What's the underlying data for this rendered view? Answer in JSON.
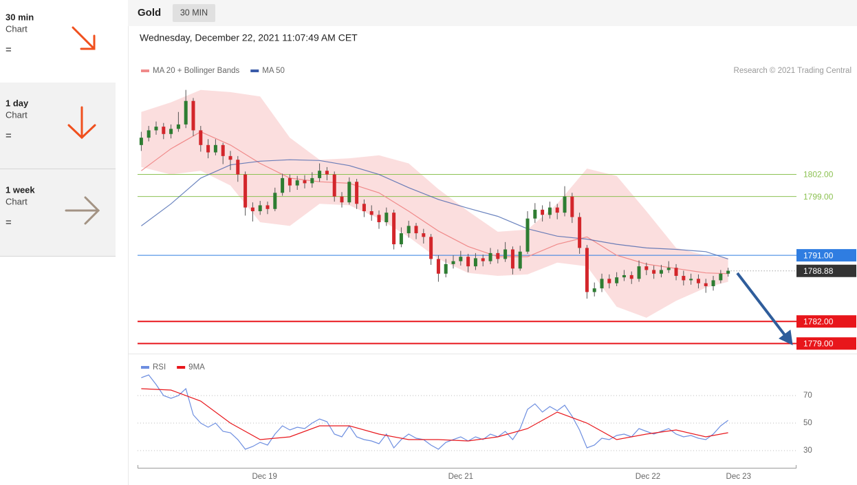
{
  "sidebar": [
    {
      "timeframe": "30 min",
      "label": "Chart",
      "status": "="
    },
    {
      "timeframe": "1 day",
      "label": "Chart",
      "status": "="
    },
    {
      "timeframe": "1 week",
      "label": "Chart",
      "status": "="
    }
  ],
  "header": {
    "instrument": "Gold",
    "interval": "30 MIN"
  },
  "chart_data": {
    "type": "candlestick",
    "datetime": "Wednesday, December 22, 2021 11:07:49 AM CET",
    "credit": "Research © 2021 Trading Central",
    "legend": [
      {
        "name": "MA 20 + Bollinger Bands",
        "color": "#f08a8a"
      },
      {
        "name": "MA 50",
        "color": "#3a5ba9"
      }
    ],
    "up_color": "#2e7d32",
    "down_color": "#d3262b",
    "xlim": [
      -0.5,
      88.2
    ],
    "xticks": [
      {
        "value": 16.6,
        "label": "Dec 19"
      },
      {
        "value": 43,
        "label": "Dec 21"
      },
      {
        "value": 68.2,
        "label": "Dec 22"
      },
      {
        "value": 80.4,
        "label": "Dec 23"
      }
    ],
    "ylim": [
      1778,
      1814.5
    ],
    "candles": [
      [
        1806,
        1807.8,
        1805.2,
        1807
      ],
      [
        1807,
        1808.6,
        1806.5,
        1808
      ],
      [
        1808,
        1809.2,
        1807.4,
        1808.5
      ],
      [
        1808.5,
        1809,
        1806.8,
        1807.5
      ],
      [
        1807.5,
        1808.8,
        1806.9,
        1808.2
      ],
      [
        1808.2,
        1810.5,
        1807.8,
        1808.8
      ],
      [
        1808.8,
        1813.5,
        1808.3,
        1812
      ],
      [
        1812,
        1812.4,
        1807.2,
        1808
      ],
      [
        1808,
        1808.6,
        1805.1,
        1806
      ],
      [
        1806,
        1806.8,
        1804.2,
        1805
      ],
      [
        1805,
        1806.8,
        1804.6,
        1806
      ],
      [
        1806,
        1806.3,
        1803.4,
        1804.5
      ],
      [
        1804.5,
        1805.2,
        1802.6,
        1804
      ],
      [
        1804,
        1804.5,
        1801,
        1802
      ],
      [
        1802,
        1802.4,
        1796.4,
        1797.5
      ],
      [
        1797.5,
        1798.2,
        1795.6,
        1797
      ],
      [
        1797,
        1798.4,
        1796.5,
        1797.8
      ],
      [
        1797.8,
        1798.3,
        1796.6,
        1797.3
      ],
      [
        1797.3,
        1800.2,
        1797,
        1799.5
      ],
      [
        1799.5,
        1802.1,
        1799.1,
        1801.5
      ],
      [
        1801.5,
        1802,
        1799.6,
        1800.5
      ],
      [
        1800.5,
        1801.8,
        1799.9,
        1801.2
      ],
      [
        1801.2,
        1801.9,
        1800.1,
        1800.8
      ],
      [
        1800.8,
        1802.3,
        1800.2,
        1801.5
      ],
      [
        1801.5,
        1803.5,
        1801,
        1802.5
      ],
      [
        1802.5,
        1803,
        1801.2,
        1802
      ],
      [
        1802,
        1802.4,
        1798.3,
        1799
      ],
      [
        1799,
        1799.6,
        1797.5,
        1798.2
      ],
      [
        1798.2,
        1801.6,
        1797.9,
        1801
      ],
      [
        1801,
        1801.4,
        1797.3,
        1798
      ],
      [
        1798,
        1798.6,
        1796.2,
        1797
      ],
      [
        1797,
        1797.8,
        1795.7,
        1796.5
      ],
      [
        1796.5,
        1797.1,
        1794.6,
        1795.5
      ],
      [
        1795.5,
        1797.5,
        1795,
        1796.8
      ],
      [
        1796.8,
        1797.2,
        1791.8,
        1792.5
      ],
      [
        1792.5,
        1794.8,
        1792.1,
        1794
      ],
      [
        1794,
        1795.7,
        1793.4,
        1795
      ],
      [
        1795,
        1795.4,
        1793.2,
        1794
      ],
      [
        1794,
        1794.6,
        1792.6,
        1793.5
      ],
      [
        1793.5,
        1793.9,
        1789.7,
        1790.5
      ],
      [
        1790.5,
        1791,
        1787.4,
        1788.5
      ],
      [
        1788.5,
        1790.5,
        1788,
        1789.8
      ],
      [
        1789.8,
        1791,
        1789.2,
        1790.2
      ],
      [
        1790.2,
        1791.6,
        1789.6,
        1790.8
      ],
      [
        1790.8,
        1791.2,
        1788.7,
        1789.5
      ],
      [
        1789.5,
        1791.3,
        1789,
        1790.6
      ],
      [
        1790.6,
        1791.1,
        1789.5,
        1790.2
      ],
      [
        1790.2,
        1792,
        1789.8,
        1791.3
      ],
      [
        1791.3,
        1791.8,
        1789.9,
        1790.5
      ],
      [
        1790.5,
        1792.8,
        1790.1,
        1791.8
      ],
      [
        1791.8,
        1792.2,
        1788.4,
        1789.2
      ],
      [
        1789.2,
        1792.3,
        1788.9,
        1791.5
      ],
      [
        1791.5,
        1797,
        1791.2,
        1796
      ],
      [
        1796,
        1798.1,
        1795.4,
        1797.2
      ],
      [
        1797.2,
        1797.8,
        1795.6,
        1796.5
      ],
      [
        1796.5,
        1798.3,
        1796,
        1797.5
      ],
      [
        1797.5,
        1798,
        1795.9,
        1796.8
      ],
      [
        1796.8,
        1800.4,
        1796.3,
        1799
      ],
      [
        1799,
        1799.5,
        1795.4,
        1796.2
      ],
      [
        1796.2,
        1796.8,
        1791.2,
        1792
      ],
      [
        1792,
        1792.4,
        1785.1,
        1786
      ],
      [
        1786,
        1787.3,
        1785.4,
        1786.5
      ],
      [
        1786.5,
        1788.5,
        1786,
        1787.8
      ],
      [
        1787.8,
        1788.4,
        1786.5,
        1787.2
      ],
      [
        1787.2,
        1788.7,
        1786.8,
        1788
      ],
      [
        1788,
        1789,
        1787.5,
        1788.3
      ],
      [
        1788.3,
        1788.8,
        1787.1,
        1787.8
      ],
      [
        1787.8,
        1790.3,
        1787.4,
        1789.5
      ],
      [
        1789.5,
        1790,
        1788.3,
        1789
      ],
      [
        1789,
        1789.6,
        1787.8,
        1788.5
      ],
      [
        1788.5,
        1789.7,
        1788,
        1789
      ],
      [
        1789,
        1790.2,
        1788.6,
        1789.3
      ],
      [
        1789.3,
        1789.8,
        1787.6,
        1788.2
      ],
      [
        1788.2,
        1788.9,
        1786.9,
        1787.6
      ],
      [
        1787.6,
        1788.5,
        1787,
        1787.8
      ],
      [
        1787.8,
        1788.4,
        1786.5,
        1787.2
      ],
      [
        1787.2,
        1787.8,
        1785.9,
        1786.8
      ],
      [
        1786.8,
        1788.2,
        1786.2,
        1787.6
      ],
      [
        1787.6,
        1789,
        1787.2,
        1788.5
      ],
      [
        1788.5,
        1789.3,
        1788.1,
        1788.9
      ]
    ],
    "indicators": {
      "x": [
        0,
        4,
        8,
        12,
        16,
        20,
        24,
        28,
        32,
        36,
        40,
        44,
        48,
        52,
        56,
        60,
        64,
        68,
        72,
        76,
        79
      ],
      "ma20": [
        1802.5,
        1805.5,
        1807.8,
        1806,
        1803.5,
        1801.5,
        1801,
        1800.8,
        1799.5,
        1797,
        1794.3,
        1792.2,
        1790.8,
        1790.8,
        1792.5,
        1793.5,
        1791,
        1789.8,
        1789.2,
        1788.6,
        1788.5
      ],
      "ma50": [
        1795,
        1798,
        1801.5,
        1803.3,
        1803.8,
        1804,
        1803.9,
        1803.2,
        1802,
        1800.2,
        1798.6,
        1797.4,
        1796.3,
        1794.6,
        1793.6,
        1793.2,
        1792.5,
        1792,
        1791.8,
        1791.5,
        1790.5
      ],
      "bb_upper": [
        1810.5,
        1811.8,
        1813.5,
        1813.2,
        1812.6,
        1807,
        1804,
        1804.2,
        1804.6,
        1803.5,
        1800,
        1797,
        1794.2,
        1794.5,
        1798,
        1802.8,
        1801.8,
        1797,
        1792,
        1791,
        1790.6
      ],
      "bb_lower": [
        1803,
        1802,
        1802.5,
        1800.5,
        1795.5,
        1795,
        1798,
        1797.8,
        1796,
        1793.5,
        1790.5,
        1788.6,
        1788.2,
        1788.4,
        1790,
        1789.5,
        1784,
        1782.5,
        1784.8,
        1786.6,
        1787.4
      ]
    },
    "levels": [
      {
        "value": 1802,
        "label": "1802.00",
        "color": "#8cc152",
        "boxed": false
      },
      {
        "value": 1799,
        "label": "1799.00",
        "color": "#8cc152",
        "boxed": false
      },
      {
        "value": 1791,
        "label": "1791.00",
        "color": "#2f7de1",
        "boxed": true
      },
      {
        "value": 1782,
        "label": "1782.00",
        "color": "#e8161b",
        "boxed": true
      },
      {
        "value": 1779,
        "label": "1779.00",
        "color": "#e8161b",
        "boxed": true
      }
    ],
    "current": {
      "value": 1788.88,
      "label": "1788.88",
      "color": "#333333"
    },
    "rsi": {
      "legend": [
        {
          "name": "RSI",
          "color": "#6d8ee0"
        },
        {
          "name": "9MA",
          "color": "#e8161b"
        }
      ],
      "ylim": [
        22.5,
        87.5
      ],
      "yticks": [
        30,
        50,
        70
      ],
      "values": [
        83,
        85,
        78,
        70,
        68,
        70,
        75,
        56,
        50,
        47,
        50,
        44,
        43,
        38,
        31,
        33,
        36,
        34,
        42,
        48,
        45,
        47,
        46,
        50,
        53,
        51,
        42,
        40,
        48,
        40,
        38,
        37,
        35,
        42,
        32,
        38,
        42,
        39,
        38,
        34,
        31,
        36,
        38,
        40,
        37,
        40,
        38,
        42,
        40,
        44,
        38,
        46,
        60,
        64,
        58,
        62,
        59,
        63,
        55,
        45,
        32,
        34,
        39,
        38,
        41,
        42,
        40,
        46,
        44,
        42,
        44,
        46,
        42,
        40,
        41,
        39,
        38,
        42,
        48,
        52
      ],
      "ma9": [
        75,
        74,
        66,
        50,
        38,
        40,
        48,
        48,
        42,
        38,
        38,
        37,
        40,
        46,
        58,
        50,
        38,
        42,
        45,
        40,
        43
      ]
    }
  }
}
